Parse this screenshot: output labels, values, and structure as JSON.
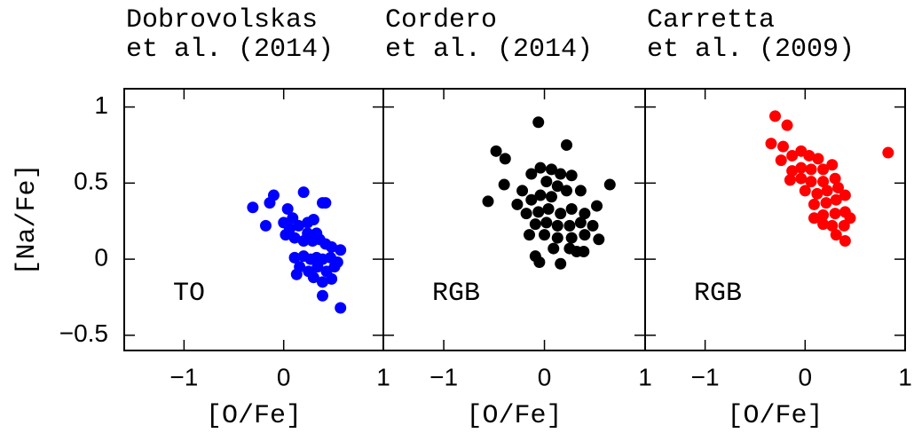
{
  "chart_data": [
    {
      "type": "scatter",
      "title": [
        "Dobrovolskas",
        "et al. (2014)"
      ],
      "annotation": "TO",
      "xlabel": "[O/Fe]",
      "ylabel": "[Na/Fe]",
      "color": "#0000ff",
      "xlim": [
        -1.6,
        1.0
      ],
      "ylim": [
        -0.6,
        1.12
      ],
      "xticks": [
        {
          "value": -1,
          "label": "−1"
        },
        0,
        1
      ],
      "yticks": [
        {
          "value": -0.5,
          "label": "−0.5"
        },
        0,
        0.5,
        1
      ],
      "x": [
        -0.31,
        -0.18,
        -0.1,
        -0.14,
        0.2,
        0.04,
        0.09,
        0,
        0.06,
        0.15,
        0.24,
        0.3,
        0.39,
        0.42,
        0.11,
        0.2,
        0.29,
        0.36,
        0.42,
        0.48,
        0.57,
        0.11,
        0.2,
        0.27,
        0.33,
        0.39,
        0.47,
        0.54,
        0.16,
        0.25,
        0.34,
        0.43,
        0.51,
        0.13,
        0.3,
        0.39,
        0.48,
        0.39,
        0.57,
        0.02,
        0.24,
        0.33
      ],
      "y": [
        0.34,
        0.22,
        0.42,
        0.37,
        0.44,
        0.33,
        0.27,
        0.24,
        0.2,
        0.22,
        0.24,
        0.26,
        0.37,
        0.37,
        0.14,
        0.12,
        0.12,
        0.13,
        0.1,
        0.08,
        0.06,
        0.01,
        0.02,
        0,
        0.01,
        0,
        0.01,
        -0.02,
        -0.05,
        -0.08,
        -0.05,
        -0.08,
        -0.05,
        -0.1,
        -0.12,
        -0.15,
        -0.13,
        -0.24,
        -0.32,
        0.16,
        0.17,
        0.17
      ]
    },
    {
      "type": "scatter",
      "title": [
        "Cordero",
        "et al. (2014)"
      ],
      "annotation": "RGB",
      "xlabel": "[O/Fe]",
      "color": "#000000",
      "xlim": [
        -1.6,
        1.0
      ],
      "ylim": [
        -0.6,
        1.12
      ],
      "xticks": [
        {
          "value": -1,
          "label": "−1"
        },
        0,
        1
      ],
      "yticks": [
        -0.5,
        0,
        0.5,
        1
      ],
      "x": [
        -0.06,
        -0.48,
        -0.39,
        0.22,
        -0.56,
        -0.4,
        -0.22,
        -0.13,
        -0.04,
        0.07,
        0.16,
        0.27,
        0.02,
        0.13,
        -0.13,
        -0.27,
        -0.04,
        0.07,
        0.22,
        0.36,
        0.65,
        -0.18,
        -0.06,
        0.04,
        0.16,
        0.27,
        0.4,
        0.52,
        -0.09,
        0.02,
        0.13,
        0.25,
        0.36,
        0.48,
        -0.15,
        0,
        0.13,
        0.27,
        0.4,
        0.54,
        0.09,
        0.25,
        0.39,
        -0.09,
        -0.05,
        0.16,
        0.32
      ],
      "y": [
        0.9,
        0.71,
        0.66,
        0.75,
        0.38,
        0.49,
        0.45,
        0.56,
        0.6,
        0.59,
        0.56,
        0.55,
        0.51,
        0.48,
        0.39,
        0.36,
        0.42,
        0.41,
        0.45,
        0.45,
        0.49,
        0.3,
        0.31,
        0.33,
        0.3,
        0.33,
        0.3,
        0.35,
        0.23,
        0.24,
        0.22,
        0.22,
        0.24,
        0.22,
        0.16,
        0.16,
        0.14,
        0.14,
        0.16,
        0.13,
        0.07,
        0.07,
        0.05,
        0.02,
        -0.02,
        -0.03,
        0.05
      ]
    },
    {
      "type": "scatter",
      "title": [
        "Carretta",
        "et al. (2009)"
      ],
      "annotation": "RGB",
      "xlabel": "[O/Fe]",
      "color": "#ff0000",
      "xlim": [
        -1.6,
        1.0
      ],
      "ylim": [
        -0.6,
        1.12
      ],
      "xticks": [
        {
          "value": -1,
          "label": "−1"
        },
        0,
        1
      ],
      "yticks": [
        -0.5,
        0,
        0.5,
        1
      ],
      "x": [
        -0.3,
        -0.18,
        -0.34,
        -0.22,
        0.83,
        -0.24,
        -0.13,
        -0.04,
        0.04,
        0.13,
        -0.13,
        -0.04,
        0.06,
        0.18,
        0.27,
        -0.15,
        -0.04,
        0.06,
        0.18,
        0.3,
        0,
        0.12,
        0.22,
        0.33,
        0.09,
        0.21,
        0.31,
        0.4,
        0.18,
        0.3,
        0.4,
        0.27,
        0.39,
        0.45,
        0.31,
        0.4,
        0.18,
        0.09
      ],
      "y": [
        0.94,
        0.88,
        0.76,
        0.74,
        0.7,
        0.65,
        0.68,
        0.71,
        0.68,
        0.66,
        0.58,
        0.6,
        0.59,
        0.59,
        0.62,
        0.52,
        0.53,
        0.51,
        0.51,
        0.53,
        0.45,
        0.43,
        0.45,
        0.47,
        0.36,
        0.37,
        0.39,
        0.42,
        0.29,
        0.3,
        0.31,
        0.22,
        0.22,
        0.27,
        0.16,
        0.12,
        0.23,
        0.27
      ]
    }
  ]
}
